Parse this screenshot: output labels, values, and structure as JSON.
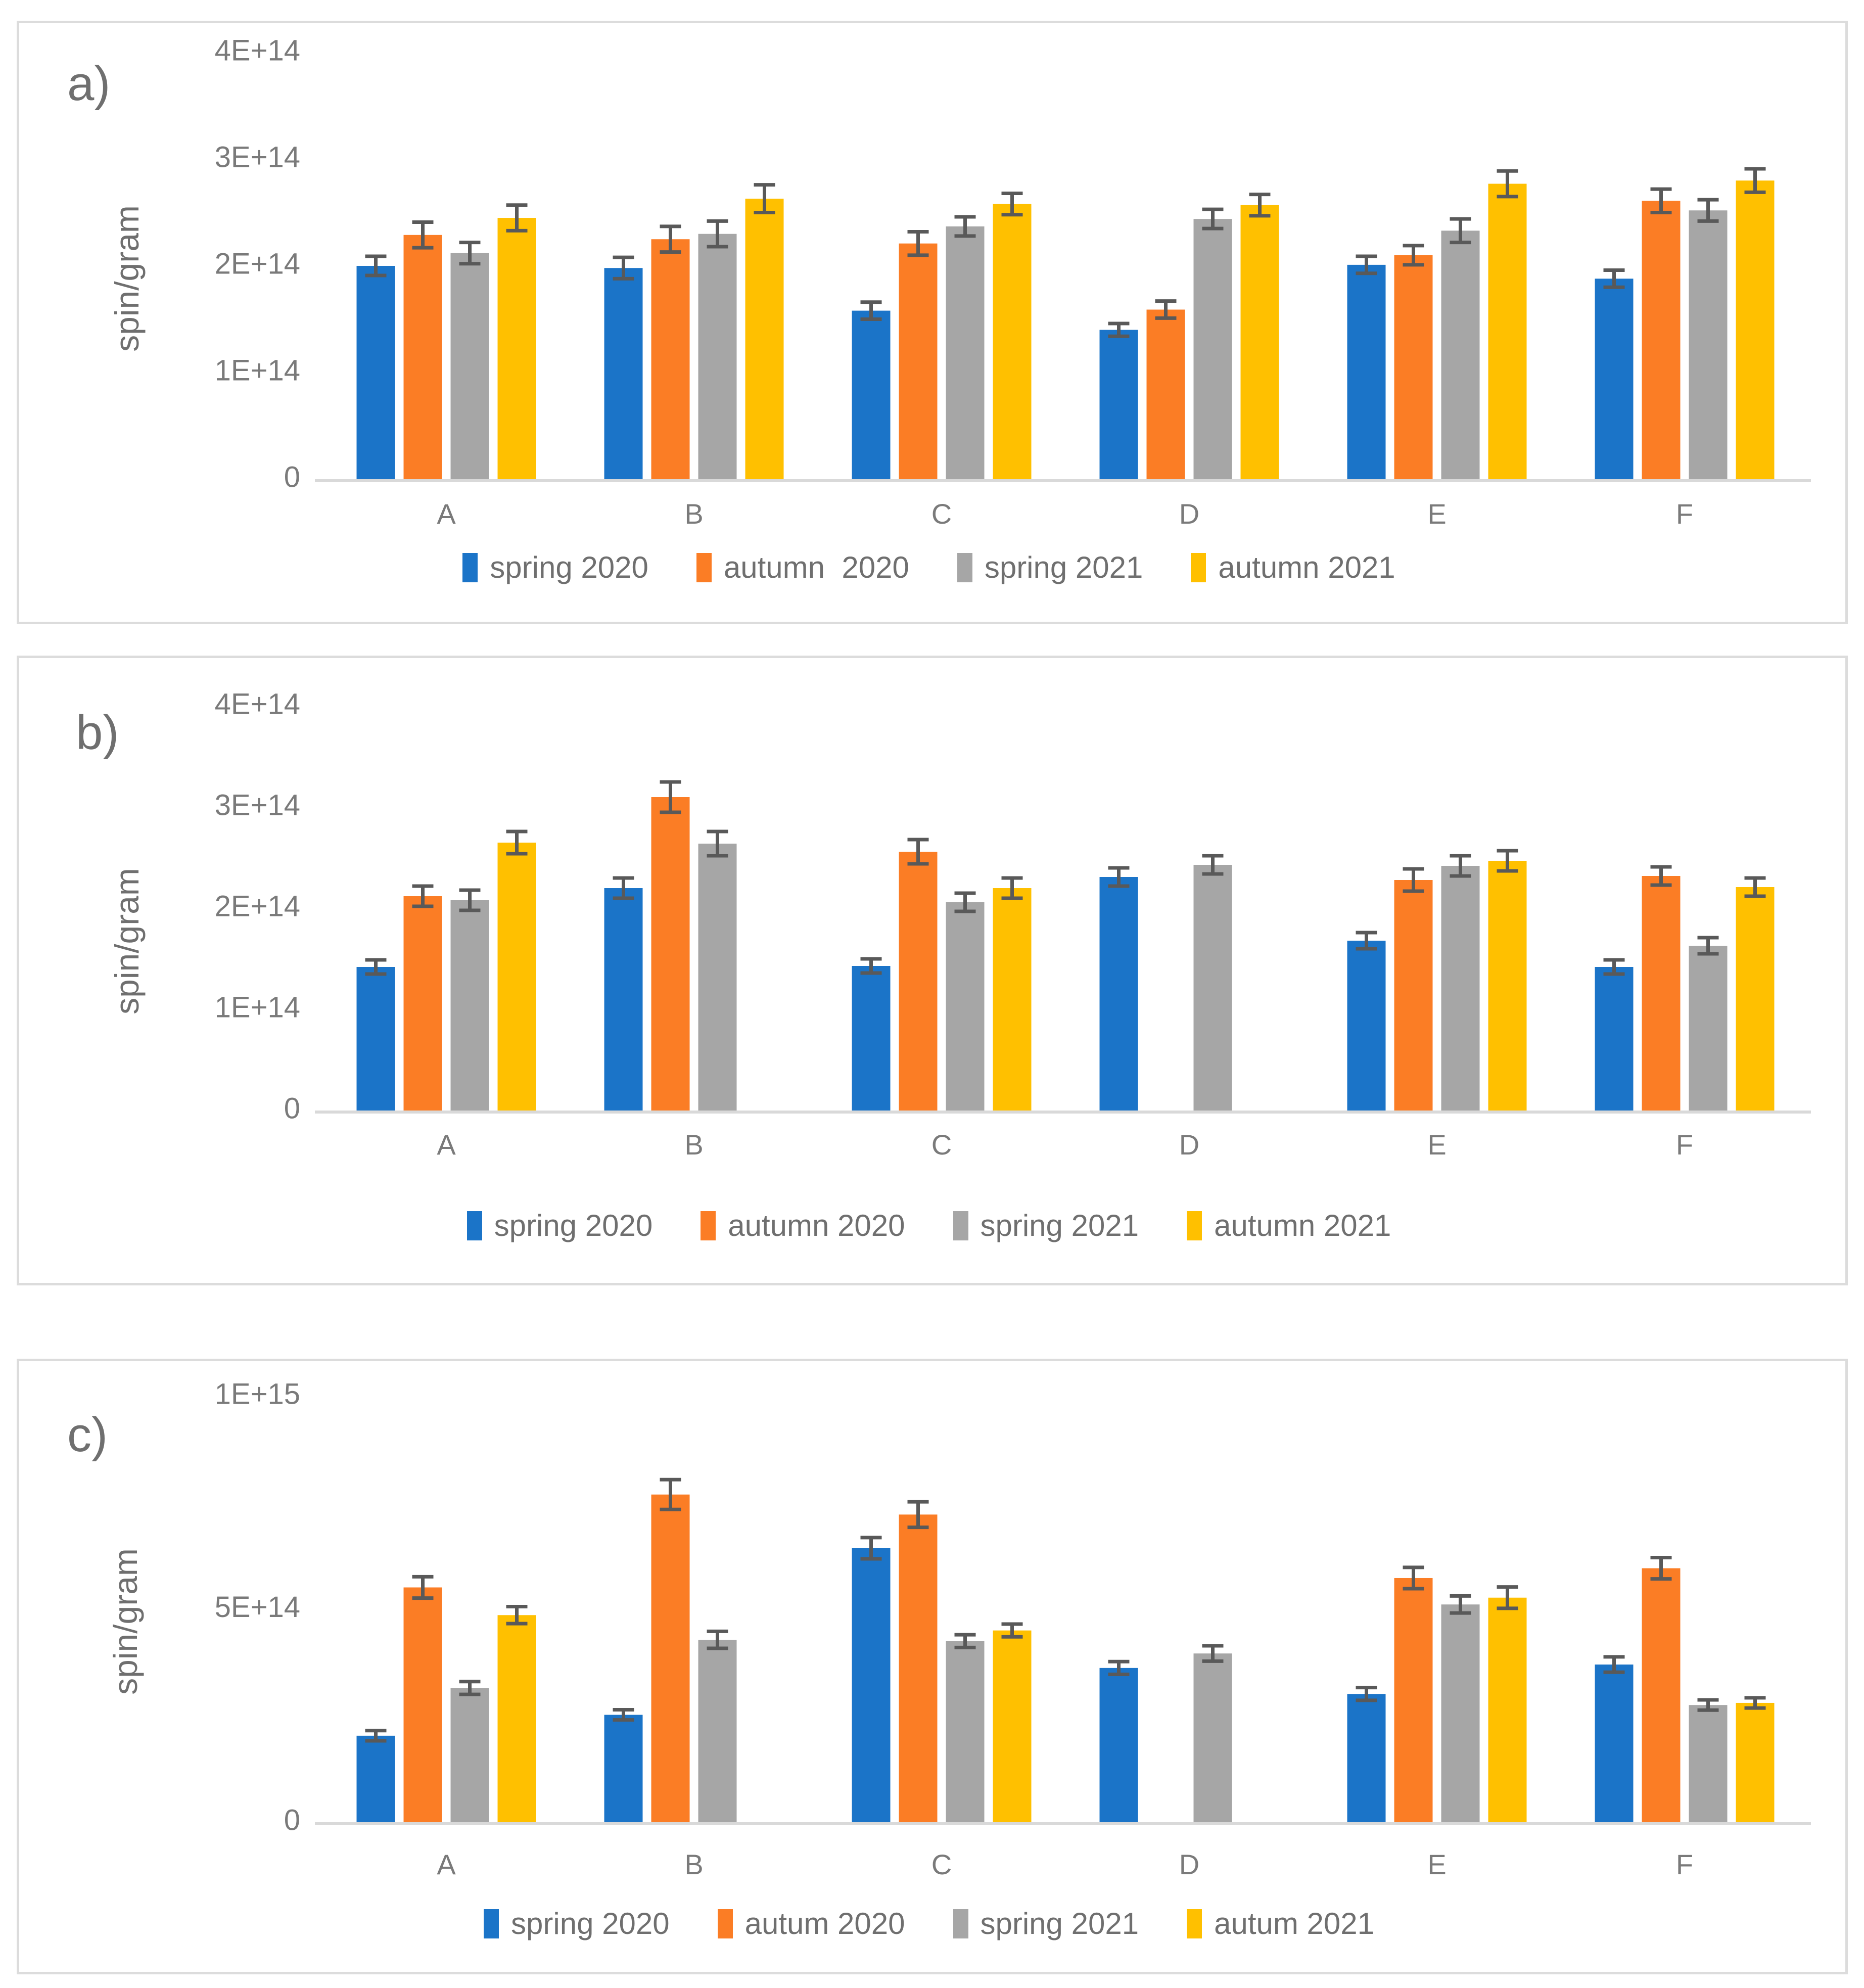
{
  "style": {
    "background": "#FFFFFF",
    "panel_border": "#DCDCDC",
    "axis_line": "#D9D9D9",
    "text": "#6F6F6F",
    "tick_text": "#7A7A7A",
    "error_bar": "#595959"
  },
  "chart_data": [
    {
      "type": "bar",
      "panel_label": "a)",
      "ylabel": "spin/gram",
      "value_unit": "1E+14",
      "ymax_e14": 4,
      "ylim": [
        0,
        400000000000000.0
      ],
      "grid": false,
      "legend_position": "bottom",
      "yticks": [
        {
          "value_e14": 4,
          "label": "4E+14"
        },
        {
          "value_e14": 3,
          "label": "3E+14"
        },
        {
          "value_e14": 2,
          "label": "2E+14"
        },
        {
          "value_e14": 1,
          "label": "1E+14"
        },
        {
          "value_e14": 0,
          "label": "0"
        }
      ],
      "categories": [
        "A",
        "B",
        "C",
        "D",
        "E",
        "F"
      ],
      "series": [
        {
          "name": "spring 2020",
          "color": "#1B74C8",
          "values_e14": [
            2.0,
            1.98,
            1.58,
            1.4,
            2.01,
            1.88
          ],
          "errors_e14": [
            0.09,
            0.1,
            0.08,
            0.06,
            0.08,
            0.08
          ]
        },
        {
          "name": "autumn  2020",
          "color": "#FB7D25",
          "values_e14": [
            2.29,
            2.25,
            2.21,
            1.59,
            2.1,
            2.61
          ],
          "errors_e14": [
            0.12,
            0.12,
            0.11,
            0.08,
            0.09,
            0.11
          ]
        },
        {
          "name": "spring 2021",
          "color": "#A6A6A6",
          "values_e14": [
            2.12,
            2.3,
            2.37,
            2.44,
            2.33,
            2.52
          ],
          "errors_e14": [
            0.1,
            0.12,
            0.09,
            0.09,
            0.11,
            0.1
          ]
        },
        {
          "name": "autumn 2021",
          "color": "#FFC000",
          "values_e14": [
            2.45,
            2.63,
            2.58,
            2.57,
            2.77,
            2.8
          ],
          "errors_e14": [
            0.12,
            0.13,
            0.1,
            0.1,
            0.12,
            0.11
          ]
        }
      ]
    },
    {
      "type": "bar",
      "panel_label": "b)",
      "ylabel": "spin/gram",
      "value_unit": "1E+14",
      "ymax_e14": 4,
      "ylim": [
        0,
        400000000000000.0
      ],
      "grid": false,
      "legend_position": "bottom",
      "yticks": [
        {
          "value_e14": 4,
          "label": "4E+14"
        },
        {
          "value_e14": 3,
          "label": "3E+14"
        },
        {
          "value_e14": 2,
          "label": "2E+14"
        },
        {
          "value_e14": 1,
          "label": "1E+14"
        },
        {
          "value_e14": 0,
          "label": "0"
        }
      ],
      "categories": [
        "A",
        "B",
        "C",
        "D",
        "E",
        "F"
      ],
      "series": [
        {
          "name": "spring 2020",
          "color": "#1B74C8",
          "values_e14": [
            1.42,
            2.2,
            1.43,
            2.31,
            1.68,
            1.42
          ],
          "errors_e14": [
            0.07,
            0.1,
            0.07,
            0.09,
            0.08,
            0.07
          ]
        },
        {
          "name": "autumn 2020",
          "color": "#FB7D25",
          "values_e14": [
            2.12,
            3.1,
            2.56,
            null,
            2.28,
            2.32
          ],
          "errors_e14": [
            0.1,
            0.15,
            0.12,
            null,
            0.11,
            0.09
          ]
        },
        {
          "name": "spring 2021",
          "color": "#A6A6A6",
          "values_e14": [
            2.08,
            2.64,
            2.06,
            2.43,
            2.42,
            1.63
          ],
          "errors_e14": [
            0.1,
            0.12,
            0.09,
            0.09,
            0.1,
            0.08
          ]
        },
        {
          "name": "autumn 2021",
          "color": "#FFC000",
          "values_e14": [
            2.65,
            null,
            2.2,
            null,
            2.47,
            2.21
          ],
          "errors_e14": [
            0.11,
            null,
            0.1,
            null,
            0.1,
            0.09
          ]
        }
      ]
    },
    {
      "type": "bar",
      "panel_label": "c)",
      "ylabel": "spin/gram",
      "value_unit": "1E+14",
      "ymax_e14": 10,
      "ylim": [
        0,
        1000000000000000.0
      ],
      "grid": false,
      "legend_position": "bottom",
      "yticks": [
        {
          "value_e14": 10,
          "label": "1E+15"
        },
        {
          "value_e14": 5,
          "label": "5E+14"
        },
        {
          "value_e14": 0,
          "label": "0"
        }
      ],
      "categories": [
        "A",
        "B",
        "C",
        "D",
        "E",
        "F"
      ],
      "series": [
        {
          "name": "spring 2020",
          "color": "#1B74C8",
          "values_e14": [
            2.03,
            2.52,
            6.43,
            3.62,
            3.01,
            3.7
          ],
          "errors_e14": [
            0.12,
            0.12,
            0.25,
            0.15,
            0.15,
            0.18
          ]
        },
        {
          "name": "autum 2020",
          "color": "#FB7D25",
          "values_e14": [
            5.51,
            7.69,
            7.22,
            null,
            5.73,
            5.96
          ],
          "errors_e14": [
            0.25,
            0.35,
            0.3,
            null,
            0.25,
            0.25
          ]
        },
        {
          "name": "spring 2021",
          "color": "#A6A6A6",
          "values_e14": [
            3.15,
            4.28,
            4.25,
            3.96,
            5.11,
            2.75
          ],
          "errors_e14": [
            0.15,
            0.2,
            0.15,
            0.18,
            0.2,
            0.12
          ]
        },
        {
          "name": "autum 2021",
          "color": "#FFC000",
          "values_e14": [
            4.86,
            null,
            4.5,
            null,
            5.27,
            2.8
          ],
          "errors_e14": [
            0.2,
            null,
            0.15,
            null,
            0.25,
            0.12
          ]
        }
      ]
    }
  ]
}
